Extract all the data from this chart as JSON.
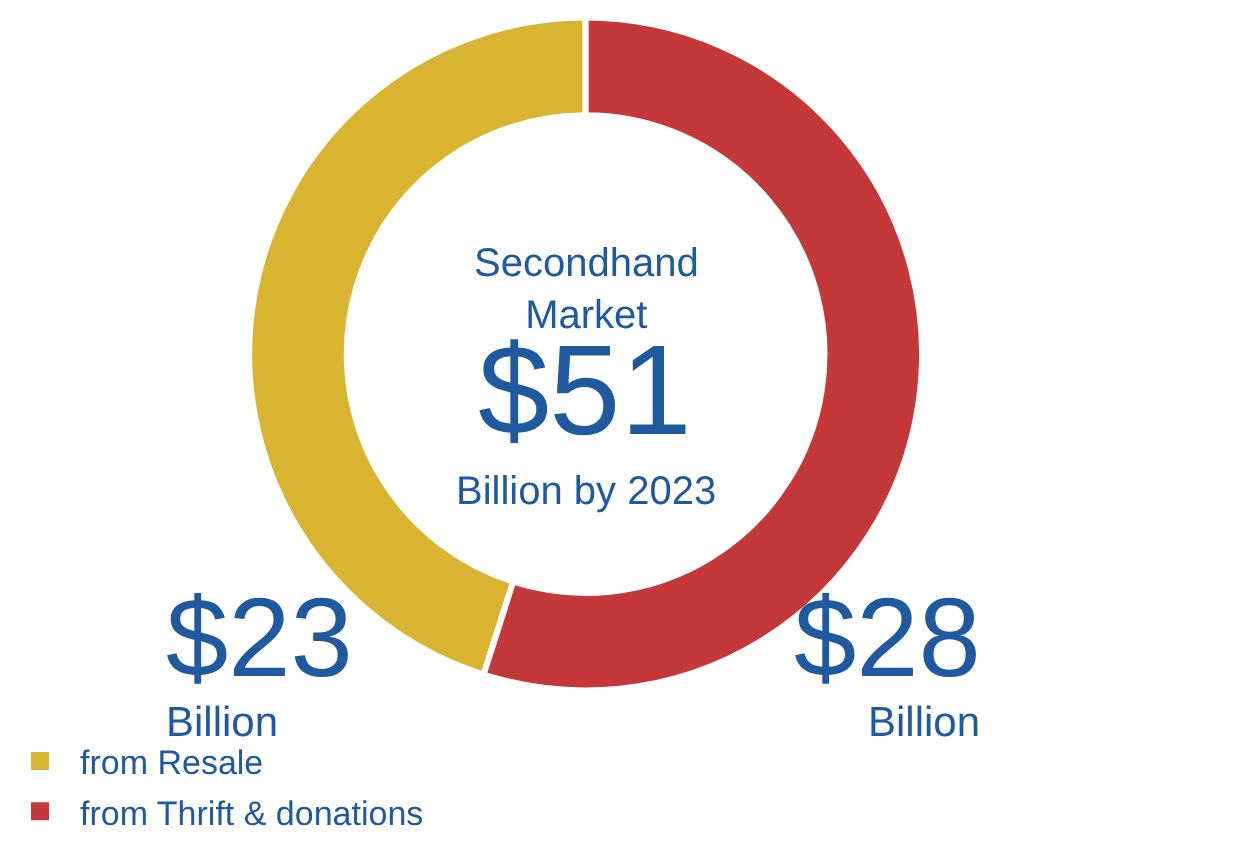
{
  "chart_data": {
    "type": "donut",
    "categories": [
      "from Resale",
      "from Thrift & donations"
    ],
    "values": [
      23,
      28
    ],
    "colors": [
      "#d9b431",
      "#c4383a"
    ],
    "value_labels": [
      "$23\nBillion",
      "$28\nBillion"
    ],
    "annotations": [
      "Secondhand\nMarket",
      "$51",
      "Billion by 2023"
    ],
    "legend": "bottom"
  }
}
